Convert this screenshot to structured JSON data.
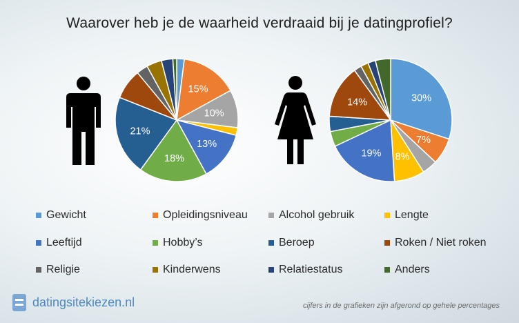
{
  "title": "Waarover heb je de waarheid verdraaid bij je datingprofiel?",
  "chart_data": [
    {
      "type": "pie",
      "group": "man",
      "categories": [
        "Gewicht",
        "Opleidingsniveau",
        "Alcohol gebruik",
        "Lengte",
        "Leeftijd",
        "Hobby’s",
        "Beroep",
        "Roken / Niet roken",
        "Religie",
        "Kinderwens",
        "Relatiestatus",
        "Anders"
      ],
      "values": [
        2,
        15,
        10,
        2,
        13,
        18,
        21,
        8,
        3,
        4,
        3,
        1
      ],
      "labels": [
        "",
        "15%",
        "10%",
        "",
        "13%",
        "18%",
        "21%",
        "",
        "",
        "",
        "",
        ""
      ]
    },
    {
      "type": "pie",
      "group": "vrouw",
      "categories": [
        "Gewicht",
        "Opleidingsniveau",
        "Alcohol gebruik",
        "Lengte",
        "Leeftijd",
        "Hobby’s",
        "Beroep",
        "Roken / Niet roken",
        "Religie",
        "Kinderwens",
        "Relatiestatus",
        "Anders"
      ],
      "values": [
        30,
        7,
        4,
        8,
        19,
        4,
        4,
        14,
        2,
        2,
        2,
        4
      ],
      "labels": [
        "30%",
        "7%",
        "",
        "8%",
        "19%",
        "",
        "",
        "14%",
        "",
        "",
        "",
        ""
      ]
    }
  ],
  "colors": [
    "#5b9bd5",
    "#ed7d31",
    "#a5a5a5",
    "#ffc000",
    "#4472c4",
    "#70ad47",
    "#255e91",
    "#9e480e",
    "#636363",
    "#997300",
    "#264478",
    "#43682b"
  ],
  "legend": [
    "Gewicht",
    "Opleidingsniveau",
    "Alcohol gebruik",
    "Lengte",
    "Leeftijd",
    "Hobby’s",
    "Beroep",
    "Roken / Niet roken",
    "Religie",
    "Kinderwens",
    "Relatiestatus",
    "Anders"
  ],
  "icons": {
    "man": "man-icon",
    "woman": "woman-icon",
    "brand": "document-icon"
  },
  "brand": "datingsitekiezen.nl",
  "footnote": "cijfers in de grafieken zijn afgerond op gehele percentages"
}
